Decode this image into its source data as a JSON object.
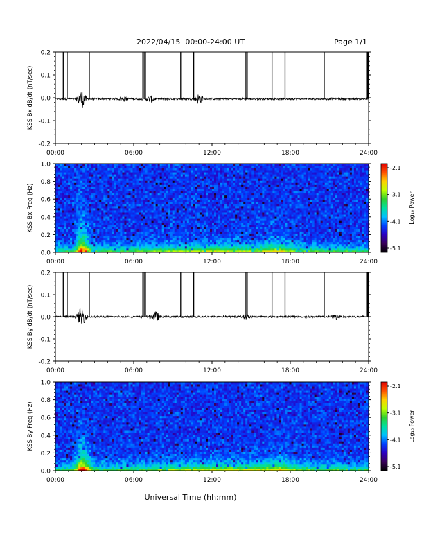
{
  "header": {
    "date_range": "2022/04/15  00:00-24:00 UT",
    "page_label": "Page 1/1"
  },
  "footer": {
    "xlabel": "Universal Time (hh:mm)"
  },
  "colorbar_colors": [
    "#000000",
    "#3a005a",
    "#2a00c0",
    "#0040ff",
    "#00c0ff",
    "#00e0a0",
    "#30d030",
    "#c0ff00",
    "#ffd000",
    "#ff5000",
    "#e00000"
  ],
  "chart_data": [
    {
      "type": "line",
      "ylabel": "KSS Bx dB/dt (nT/sec)",
      "ylim": [
        -0.2,
        0.2
      ],
      "yticks": [
        "0.2",
        "0.1",
        "0.0",
        "-0.1",
        "-0.2"
      ],
      "xticks": [
        "00:00",
        "06:00",
        "12:00",
        "18:00",
        "24:00"
      ],
      "xlim_hours": [
        0,
        24
      ],
      "baseline": -0.005,
      "spike_hours": [
        0.6,
        0.9,
        2.6,
        6.7,
        6.8,
        6.9,
        9.6,
        10.6,
        14.6,
        14.7,
        16.6,
        17.6,
        20.6,
        23.9,
        24.0
      ],
      "bursts": [
        {
          "hour": 2.0,
          "amplitude": 0.04
        },
        {
          "hour": 11.0,
          "amplitude": 0.02
        },
        {
          "hour": 5.2,
          "amplitude": 0.008
        },
        {
          "hour": 7.3,
          "amplitude": 0.012
        }
      ]
    },
    {
      "type": "heatmap",
      "ylabel": "KSS Bx Freq (Hz)",
      "ylim": [
        0,
        1.0
      ],
      "yticks": [
        "1.0",
        "0.8",
        "0.6",
        "0.4",
        "0.2",
        "0.0"
      ],
      "xticks": [
        "00:00",
        "06:00",
        "12:00",
        "18:00",
        "24:00"
      ],
      "colorbar_label": "Log₁₀ Power",
      "colorbar_ticks": [
        "-2.1",
        "-3.1",
        "-4.1",
        "-5.1"
      ],
      "zlim": [
        -5.1,
        -2.1
      ],
      "event_hour": 2.0
    },
    {
      "type": "line",
      "ylabel": "KSS By dB/dt (nT/sec)",
      "ylim": [
        -0.2,
        0.2
      ],
      "yticks": [
        "0.2",
        "0.1",
        "0.0",
        "-0.1",
        "-0.2"
      ],
      "xticks": [
        "00:00",
        "06:00",
        "12:00",
        "18:00",
        "24:00"
      ],
      "xlim_hours": [
        0,
        24
      ],
      "baseline": 0.0,
      "spike_hours": [
        0.6,
        0.9,
        2.6,
        6.7,
        6.8,
        6.9,
        9.6,
        10.6,
        14.6,
        14.7,
        16.6,
        17.6,
        20.6,
        23.9,
        24.0
      ],
      "bursts": [
        {
          "hour": 2.0,
          "amplitude": 0.04
        },
        {
          "hour": 7.7,
          "amplitude": 0.02
        },
        {
          "hour": 14.6,
          "amplitude": 0.01
        },
        {
          "hour": 21.5,
          "amplitude": 0.008
        }
      ]
    },
    {
      "type": "heatmap",
      "ylabel": "KSS By Freq (Hz)",
      "ylim": [
        0,
        1.0
      ],
      "yticks": [
        "1.0",
        "0.8",
        "0.6",
        "0.4",
        "0.2",
        "0.0"
      ],
      "xticks": [
        "00:00",
        "06:00",
        "12:00",
        "18:00",
        "24:00"
      ],
      "colorbar_label": "Log₁₀ Power",
      "colorbar_ticks": [
        "-2.1",
        "-3.1",
        "-4.1",
        "-5.1"
      ],
      "zlim": [
        -5.1,
        -2.1
      ],
      "event_hour": 2.0
    }
  ]
}
